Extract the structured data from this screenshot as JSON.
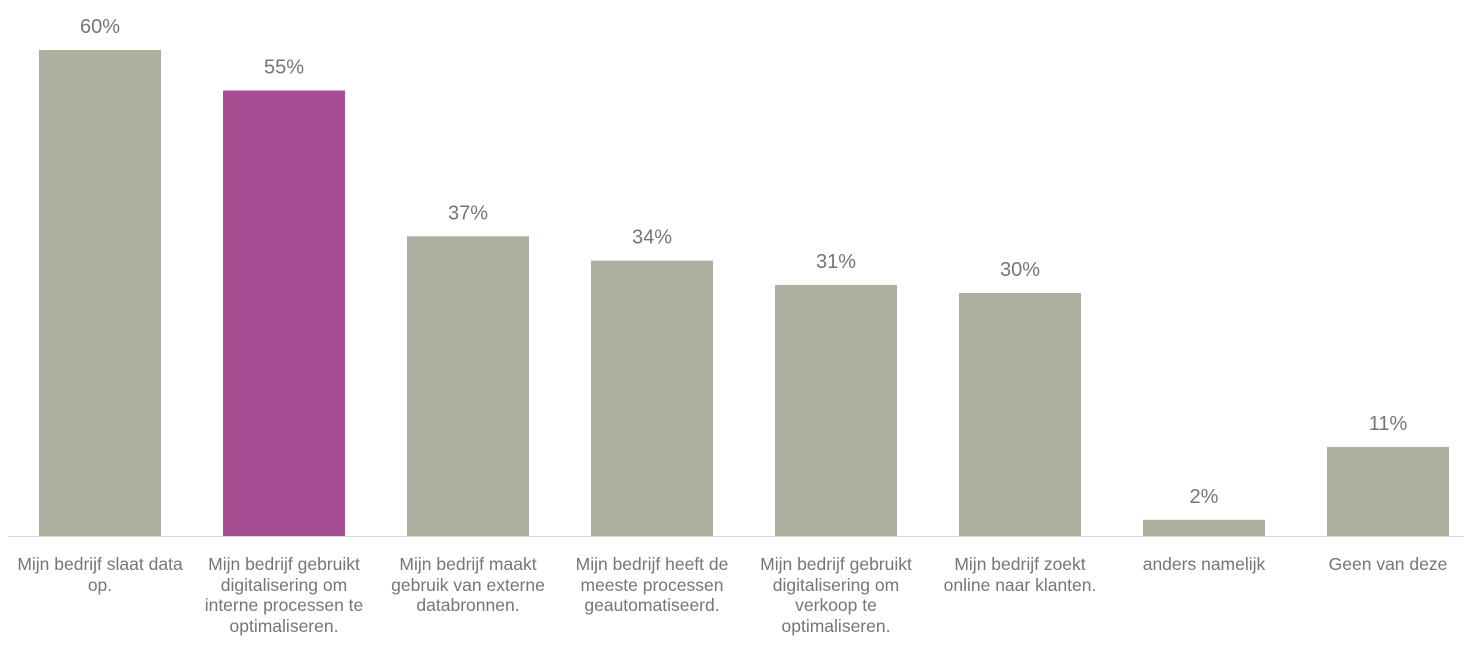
{
  "chart_data": {
    "type": "bar",
    "categories": [
      "Mijn bedrijf slaat data op.",
      "Mijn bedrijf gebruikt digitalisering om interne processen te optimaliseren.",
      "Mijn bedrijf maakt gebruik van externe databronnen.",
      "Mijn bedrijf heeft de meeste processen geautomatiseerd.",
      "Mijn bedrijf gebruikt digitalisering om verkoop te optimaliseren.",
      "Mijn bedrijf zoekt online naar klanten.",
      "anders namelijk",
      "Geen van deze"
    ],
    "values": [
      60,
      55,
      37,
      34,
      31,
      30,
      2,
      11
    ],
    "value_labels": [
      "60%",
      "55%",
      "37%",
      "34%",
      "31%",
      "30%",
      "2%",
      "11%"
    ],
    "unit": "%",
    "ylim": [
      0,
      60
    ],
    "grid": false,
    "legend": "none",
    "highlight_index": 1,
    "colors": {
      "default_bar": "#adaf9f",
      "highlight_bar": "#a74d94",
      "axis_line": "#d9d9d9",
      "label_text": "#767676"
    }
  }
}
